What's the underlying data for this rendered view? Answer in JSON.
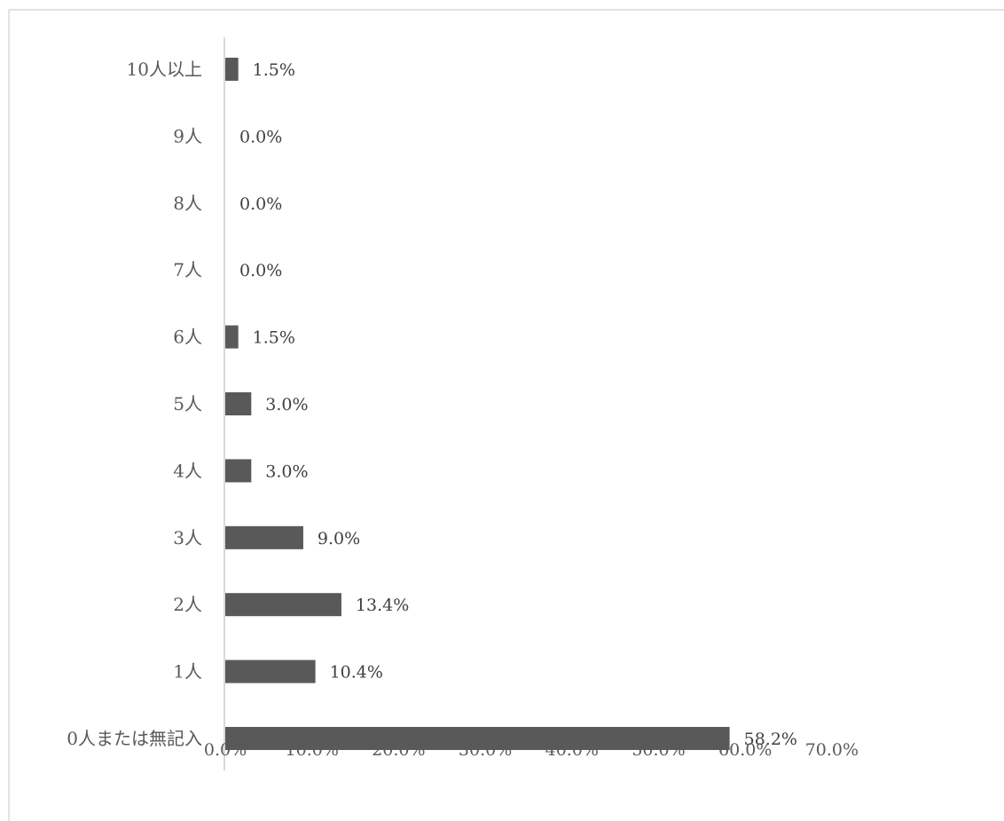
{
  "chart_data": {
    "type": "bar",
    "orientation": "horizontal",
    "categories": [
      "0人または無記入",
      "1人",
      "2人",
      "3人",
      "4人",
      "5人",
      "6人",
      "7人",
      "8人",
      "9人",
      "10人以上"
    ],
    "values": [
      58.2,
      10.4,
      13.4,
      9.0,
      3.0,
      3.0,
      1.5,
      0.0,
      0.0,
      0.0,
      1.5
    ],
    "value_labels": [
      "58.2%",
      "10.4%",
      "13.4%",
      "9.0%",
      "3.0%",
      "3.0%",
      "1.5%",
      "0.0%",
      "0.0%",
      "0.0%",
      "1.5%"
    ],
    "xlim": [
      0,
      70
    ],
    "x_ticks": [
      0,
      10,
      20,
      30,
      40,
      50,
      60,
      70
    ],
    "x_tick_labels": [
      "0.0%",
      "10.0%",
      "20.0%",
      "30.0%",
      "40.0%",
      "50.0%",
      "60.0%",
      "70.0%"
    ],
    "grid": false,
    "legend": "none",
    "colors": {
      "bar": "#595959",
      "axis": "#d9d9d9",
      "frame": "#d9d9d9"
    }
  }
}
